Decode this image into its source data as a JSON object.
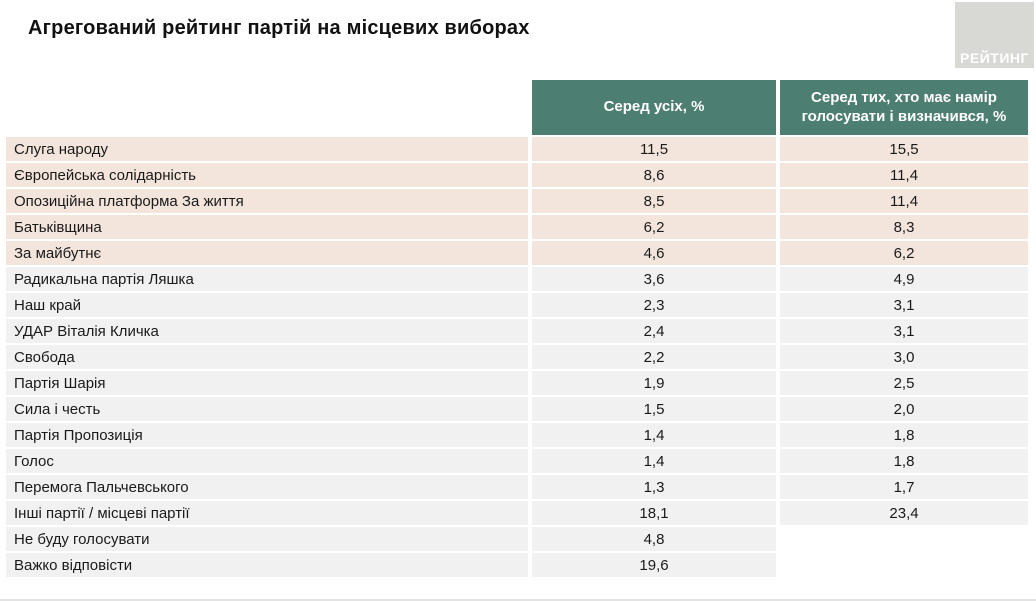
{
  "header": {
    "title": "Агрегований рейтинг партій на місцевих виборах",
    "logo_text": "РЕЙТИНГ"
  },
  "colors": {
    "header_bg": "#4d7e72",
    "row_highlight": "#f3e5dc",
    "row_default": "#f1f1f2",
    "logo_bg": "#d8d8d5"
  },
  "chart_data": {
    "type": "table",
    "title": "Агрегований рейтинг партій на місцевих виборах",
    "columns": [
      "Серед усіх, %",
      "Серед тих, хто має намір голосувати і визначився, %"
    ],
    "highlighted_rows": 5,
    "value_format": "comma-decimal-1",
    "rows": [
      {
        "party": "Слуга народу",
        "among_all": 11.5,
        "among_decided": 15.5
      },
      {
        "party": "Європейська солідарність",
        "among_all": 8.6,
        "among_decided": 11.4
      },
      {
        "party": "Опозиційна платформа За життя",
        "among_all": 8.5,
        "among_decided": 11.4
      },
      {
        "party": "Батьківщина",
        "among_all": 6.2,
        "among_decided": 8.3
      },
      {
        "party": "За майбутнє",
        "among_all": 4.6,
        "among_decided": 6.2
      },
      {
        "party": "Радикальна партія Ляшка",
        "among_all": 3.6,
        "among_decided": 4.9
      },
      {
        "party": "Наш край",
        "among_all": 2.3,
        "among_decided": 3.1
      },
      {
        "party": "УДАР Віталія Кличка",
        "among_all": 2.4,
        "among_decided": 3.1
      },
      {
        "party": "Свобода",
        "among_all": 2.2,
        "among_decided": 3.0
      },
      {
        "party": "Партія Шарія",
        "among_all": 1.9,
        "among_decided": 2.5
      },
      {
        "party": "Сила і честь",
        "among_all": 1.5,
        "among_decided": 2.0
      },
      {
        "party": "Партія Пропозиція",
        "among_all": 1.4,
        "among_decided": 1.8
      },
      {
        "party": "Голос",
        "among_all": 1.4,
        "among_decided": 1.8
      },
      {
        "party": "Перемога Пальчевського",
        "among_all": 1.3,
        "among_decided": 1.7
      },
      {
        "party": "Інші партії / місцеві партії",
        "among_all": 18.1,
        "among_decided": 23.4
      },
      {
        "party": "Не буду голосувати",
        "among_all": 4.8,
        "among_decided": null
      },
      {
        "party": "Важко відповісти",
        "among_all": 19.6,
        "among_decided": null
      }
    ]
  }
}
